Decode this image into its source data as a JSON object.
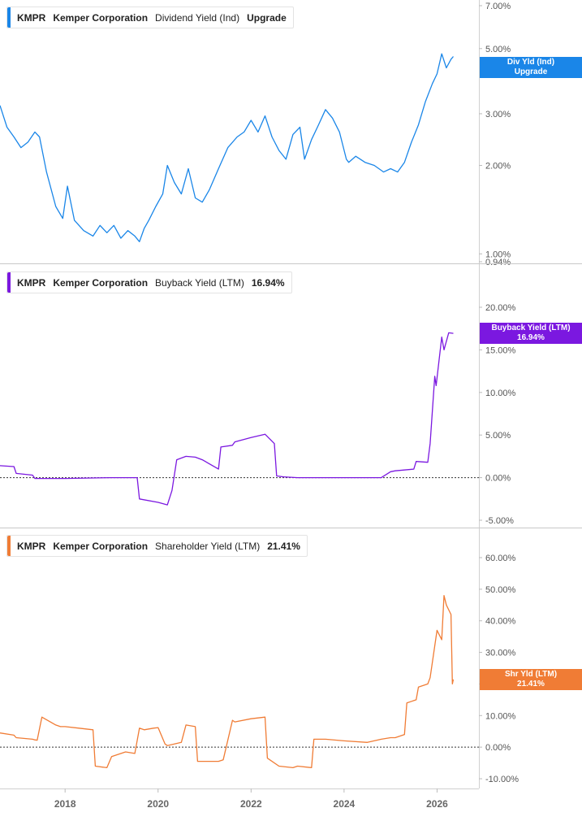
{
  "chart_data": [
    {
      "type": "line",
      "ticker": "KMPR",
      "company": "Kemper Corporation",
      "metric": "Dividend Yield (Ind)",
      "legend_value": "Upgrade",
      "tag_label": "Div Yld (Ind)",
      "tag_value": "Upgrade",
      "color": "#1a86e8",
      "scale": "log",
      "ylim": [
        0.94,
        7.0
      ],
      "yticks": [
        {
          "value": 7.0,
          "label": "7.00%"
        },
        {
          "value": 5.0,
          "label": "5.00%"
        },
        {
          "value": 3.0,
          "label": "3.00%"
        },
        {
          "value": 2.0,
          "label": "2.00%"
        },
        {
          "value": 1.0,
          "label": "1.00%"
        },
        {
          "value": 0.94,
          "label": "0.94%"
        }
      ],
      "zero_line": false,
      "series": [
        {
          "x": [
            2016.6,
            2016.75,
            2016.9,
            2017.05,
            2017.2,
            2017.35,
            2017.45,
            2017.6,
            2017.8,
            2017.95,
            2018.05,
            2018.2,
            2018.4,
            2018.6,
            2018.75,
            2018.9,
            2019.05,
            2019.2,
            2019.35,
            2019.5,
            2019.6,
            2019.7,
            2019.8,
            2019.95,
            2020.1,
            2020.2,
            2020.35,
            2020.5,
            2020.65,
            2020.8,
            2020.95,
            2021.1,
            2021.3,
            2021.5,
            2021.7,
            2021.85,
            2022.0,
            2022.15,
            2022.3,
            2022.45,
            2022.6,
            2022.75,
            2022.9,
            2023.05,
            2023.15,
            2023.3,
            2023.45,
            2023.6,
            2023.75,
            2023.9,
            2024.05,
            2024.1,
            2024.25,
            2024.45,
            2024.65,
            2024.85,
            2025.0,
            2025.15,
            2025.3,
            2025.45,
            2025.6,
            2025.75,
            2025.9,
            2026.0,
            2026.1,
            2026.2,
            2026.3,
            2026.35
          ],
          "y": [
            3.2,
            2.7,
            2.5,
            2.3,
            2.4,
            2.6,
            2.5,
            1.9,
            1.45,
            1.32,
            1.7,
            1.3,
            1.2,
            1.15,
            1.25,
            1.18,
            1.25,
            1.13,
            1.2,
            1.15,
            1.1,
            1.22,
            1.3,
            1.45,
            1.6,
            2.0,
            1.75,
            1.6,
            1.95,
            1.55,
            1.5,
            1.65,
            1.95,
            2.3,
            2.5,
            2.6,
            2.85,
            2.6,
            2.95,
            2.5,
            2.25,
            2.1,
            2.55,
            2.7,
            2.1,
            2.45,
            2.75,
            3.1,
            2.9,
            2.6,
            2.1,
            2.05,
            2.15,
            2.05,
            2.0,
            1.9,
            1.95,
            1.9,
            2.05,
            2.4,
            2.75,
            3.3,
            3.8,
            4.1,
            4.8,
            4.3,
            4.6,
            4.7
          ]
        }
      ]
    },
    {
      "type": "line",
      "ticker": "KMPR",
      "company": "Kemper Corporation",
      "metric": "Buyback Yield (LTM)",
      "legend_value": "16.94%",
      "tag_label": "Buyback Yield (LTM)",
      "tag_value": "16.94%",
      "color": "#7b18e0",
      "scale": "linear",
      "ylim": [
        -5.5,
        22
      ],
      "yticks": [
        {
          "value": 20,
          "label": "20.00%"
        },
        {
          "value": 15,
          "label": "15.00%"
        },
        {
          "value": 10,
          "label": "10.00%"
        },
        {
          "value": 5,
          "label": "5.00%"
        },
        {
          "value": 0,
          "label": "0.00%"
        },
        {
          "value": -5,
          "label": "-5.00%"
        }
      ],
      "zero_line": true,
      "series": [
        {
          "x": [
            2016.6,
            2016.9,
            2016.95,
            2017.3,
            2017.35,
            2018.0,
            2019.0,
            2019.55,
            2019.6,
            2020.0,
            2020.2,
            2020.3,
            2020.4,
            2020.6,
            2020.8,
            2020.95,
            2021.3,
            2021.35,
            2021.6,
            2021.65,
            2022.0,
            2022.3,
            2022.5,
            2022.55,
            2022.7,
            2023.0,
            2024.0,
            2024.8,
            2025.0,
            2025.1,
            2025.5,
            2025.55,
            2025.8,
            2025.85,
            2025.95,
            2025.98,
            2026.1,
            2026.15,
            2026.25,
            2026.35
          ],
          "y": [
            1.4,
            1.3,
            0.5,
            0.3,
            -0.1,
            -0.1,
            0.0,
            0.0,
            -2.5,
            -2.9,
            -3.2,
            -1.5,
            2.1,
            2.5,
            2.4,
            2.1,
            1.0,
            3.6,
            3.8,
            4.2,
            4.7,
            5.1,
            4.0,
            0.2,
            0.1,
            0.0,
            0.0,
            0.0,
            0.7,
            0.8,
            1.0,
            1.9,
            1.8,
            4.0,
            11.9,
            10.8,
            16.5,
            15.0,
            17.0,
            16.94
          ]
        }
      ]
    },
    {
      "type": "line",
      "ticker": "KMPR",
      "company": "Kemper Corporation",
      "metric": "Shareholder Yield (LTM)",
      "legend_value": "21.41%",
      "tag_label": "Shr Yld (LTM)",
      "tag_value": "21.41%",
      "color": "#f07c35",
      "scale": "linear",
      "ylim": [
        -12,
        68
      ],
      "yticks": [
        {
          "value": 60,
          "label": "60.00%"
        },
        {
          "value": 50,
          "label": "50.00%"
        },
        {
          "value": 40,
          "label": "40.00%"
        },
        {
          "value": 30,
          "label": "30.00%"
        },
        {
          "value": 20,
          "label": "20.00%"
        },
        {
          "value": 10,
          "label": "10.00%"
        },
        {
          "value": 0,
          "label": "0.00%"
        },
        {
          "value": -10,
          "label": "-10.00%"
        }
      ],
      "zero_line": true,
      "series": [
        {
          "x": [
            2016.6,
            2016.9,
            2016.95,
            2017.3,
            2017.35,
            2017.4,
            2017.5,
            2017.8,
            2017.9,
            2018.0,
            2018.3,
            2018.6,
            2018.65,
            2018.9,
            2019.0,
            2019.3,
            2019.5,
            2019.6,
            2019.7,
            2019.9,
            2020.0,
            2020.15,
            2020.2,
            2020.5,
            2020.6,
            2020.8,
            2020.85,
            2021.3,
            2021.4,
            2021.6,
            2021.65,
            2022.0,
            2022.3,
            2022.35,
            2022.6,
            2022.9,
            2023.0,
            2023.3,
            2023.35,
            2023.6,
            2024.0,
            2024.5,
            2024.8,
            2025.0,
            2025.1,
            2025.3,
            2025.35,
            2025.55,
            2025.6,
            2025.8,
            2025.85,
            2026.0,
            2026.1,
            2026.15,
            2026.2,
            2026.3,
            2026.33,
            2026.35
          ],
          "y": [
            4.5,
            3.8,
            3.0,
            2.5,
            2.3,
            2.2,
            9.5,
            7.0,
            6.5,
            6.5,
            6.0,
            5.5,
            -6.0,
            -6.5,
            -3.0,
            -1.5,
            -2.0,
            6.0,
            5.5,
            6.0,
            6.2,
            1.0,
            0.5,
            1.5,
            7.0,
            6.5,
            -4.5,
            -4.5,
            -4.0,
            8.5,
            8.0,
            9.0,
            9.5,
            -3.5,
            -6.0,
            -6.5,
            -6.0,
            -6.5,
            2.5,
            2.5,
            2.0,
            1.5,
            2.5,
            3.0,
            3.0,
            4.0,
            14.0,
            15.0,
            19.0,
            20.0,
            22.0,
            37.0,
            34.0,
            48.0,
            45.0,
            42.0,
            20.0,
            21.41
          ]
        }
      ]
    }
  ],
  "x_axis": {
    "ticks": [
      {
        "value": 2018,
        "label": "2018"
      },
      {
        "value": 2020,
        "label": "2020"
      },
      {
        "value": 2022,
        "label": "2022"
      },
      {
        "value": 2024,
        "label": "2024"
      },
      {
        "value": 2026,
        "label": "2026"
      }
    ]
  }
}
